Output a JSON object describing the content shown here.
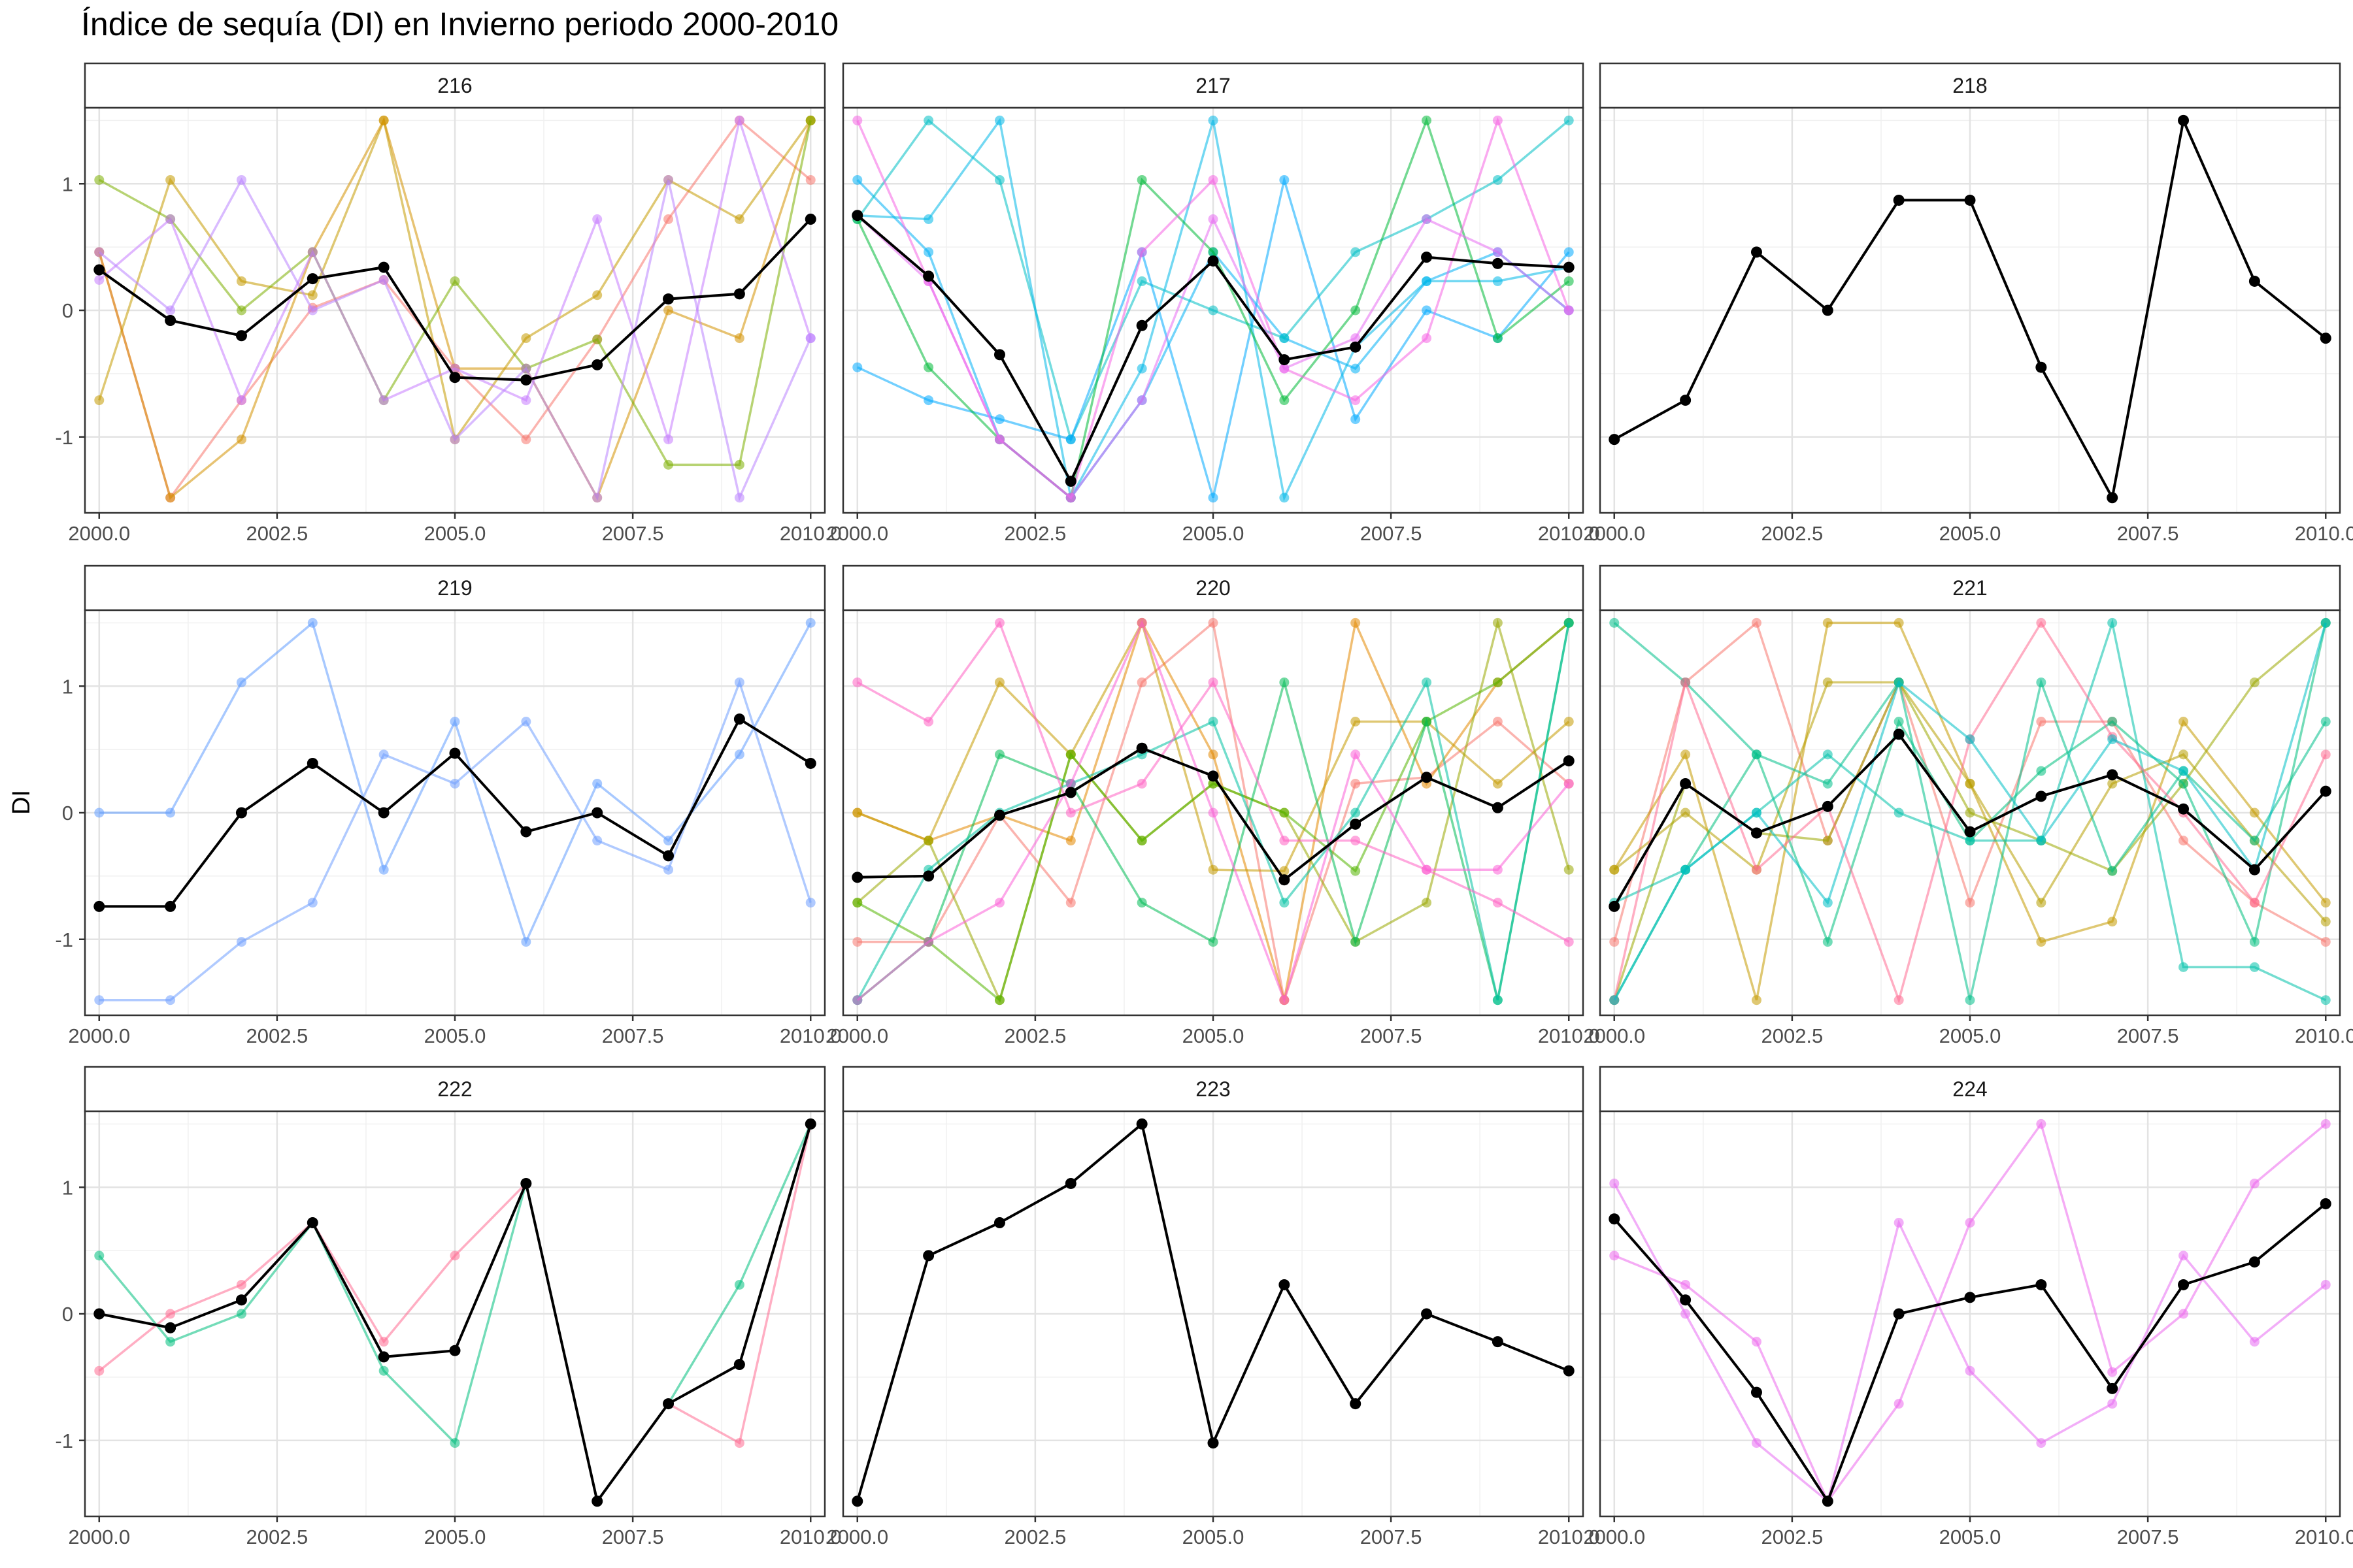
{
  "chart_data": {
    "type": "line",
    "title": "Índice de sequía (DI) en Invierno periodo 2000-2010",
    "xlabel": "",
    "ylabel": "DI",
    "x": [
      2000,
      2001,
      2002,
      2003,
      2004,
      2005,
      2006,
      2007,
      2008,
      2009,
      2010
    ],
    "xticks": [
      2000.0,
      2002.5,
      2005.0,
      2007.5,
      2010.0
    ],
    "xtick_labels": [
      "2000.0",
      "2002.5",
      "2005.0",
      "2007.5",
      "2010.0"
    ],
    "xlim": [
      1999.8,
      2010.2
    ],
    "yticks": [
      -1,
      0,
      1
    ],
    "ytick_labels": [
      "-1",
      "0",
      "1"
    ],
    "ylim": [
      -1.6,
      1.6
    ],
    "grid": true,
    "legend": "none",
    "mean_color": "#000000",
    "panels": [
      {
        "label": "216",
        "mean": [
          0.32,
          -0.08,
          -0.2,
          0.25,
          0.34,
          -0.53,
          -0.55,
          -0.43,
          0.09,
          0.13,
          0.72
        ],
        "series": [
          {
            "color": "#F8766D",
            "values": [
              0.46,
              -1.48,
              -0.71,
              0.02,
              0.24,
              -0.46,
              -1.02,
              -0.23,
              0.72,
              1.5,
              1.03
            ]
          },
          {
            "color": "#C49A00",
            "values": [
              -0.71,
              1.03,
              0.23,
              0.12,
              1.5,
              -1.02,
              -0.22,
              0.12,
              1.03,
              0.72,
              1.5
            ]
          },
          {
            "color": "#D39200",
            "values": [
              0.46,
              -1.48,
              -1.02,
              0.46,
              1.5,
              -0.46,
              -0.46,
              -1.48,
              0.0,
              -0.22,
              1.5
            ]
          },
          {
            "color": "#7CAE00",
            "values": [
              1.03,
              0.72,
              0.0,
              0.46,
              -0.71,
              0.23,
              -0.46,
              -0.23,
              -1.22,
              -1.22,
              1.5
            ]
          },
          {
            "color": "#C77CFF",
            "values": [
              0.24,
              0.72,
              -0.71,
              0.46,
              -0.71,
              -0.46,
              -0.71,
              0.72,
              -1.02,
              1.5,
              -0.22
            ]
          },
          {
            "color": "#B983FF",
            "values": [
              0.46,
              0.0,
              1.03,
              0.0,
              0.24,
              -1.02,
              -0.46,
              -1.48,
              1.03,
              -1.48,
              -0.22
            ]
          }
        ]
      },
      {
        "label": "217",
        "mean": [
          0.75,
          0.27,
          -0.35,
          -1.35,
          -0.12,
          0.39,
          -0.39,
          -0.29,
          0.42,
          0.37,
          0.34
        ],
        "series": [
          {
            "color": "#00B0F6",
            "values": [
              1.03,
              0.46,
              -1.02,
              -1.48,
              -0.71,
              0.46,
              -0.22,
              -0.46,
              0.23,
              0.46,
              0.0
            ]
          },
          {
            "color": "#00BFC4",
            "values": [
              0.72,
              1.5,
              1.03,
              -1.02,
              0.23,
              0.0,
              -0.22,
              0.46,
              0.72,
              1.03,
              1.5
            ]
          },
          {
            "color": "#00A9FF",
            "values": [
              -0.45,
              -0.71,
              -0.86,
              -1.02,
              0.46,
              -1.48,
              1.03,
              -0.86,
              0.0,
              -0.22,
              0.46
            ]
          },
          {
            "color": "#00B8E7",
            "values": [
              0.75,
              0.72,
              1.5,
              -1.48,
              -0.46,
              1.5,
              -1.48,
              -0.29,
              0.23,
              0.23,
              0.34
            ]
          },
          {
            "color": "#00BA38",
            "values": [
              0.72,
              -0.45,
              -1.02,
              -1.48,
              1.03,
              0.46,
              -0.71,
              0.0,
              1.5,
              -0.22,
              0.23
            ]
          },
          {
            "color": "#F564E3",
            "values": [
              1.5,
              0.23,
              -1.02,
              -1.48,
              0.46,
              1.03,
              -0.46,
              -0.71,
              -0.22,
              1.5,
              0.0
            ]
          },
          {
            "color": "#E76BF3",
            "values": [
              0.75,
              0.23,
              -1.02,
              -1.48,
              -0.71,
              0.72,
              -0.46,
              -0.22,
              0.72,
              0.46,
              0.0
            ]
          }
        ]
      },
      {
        "label": "218",
        "mean": [
          -1.02,
          -0.71,
          0.46,
          0.0,
          0.87,
          0.87,
          -0.45,
          -1.48,
          1.5,
          0.23,
          -0.22
        ],
        "series": []
      },
      {
        "label": "219",
        "mean": [
          -0.74,
          -0.74,
          0.0,
          0.39,
          0.0,
          0.47,
          -0.15,
          0.0,
          -0.34,
          0.74,
          0.39
        ],
        "series": [
          {
            "color": "#619CFF",
            "values": [
              0.0,
              0.0,
              1.03,
              1.5,
              -0.45,
              0.72,
              -1.02,
              0.23,
              -0.22,
              0.46,
              1.5
            ]
          },
          {
            "color": "#6F9EFF",
            "values": [
              -1.48,
              -1.48,
              -1.02,
              -0.71,
              0.46,
              0.23,
              0.72,
              -0.22,
              -0.45,
              1.03,
              -0.71
            ]
          }
        ]
      },
      {
        "label": "220",
        "mean": [
          -0.51,
          -0.5,
          -0.02,
          0.16,
          0.51,
          0.29,
          -0.53,
          -0.09,
          0.28,
          0.04,
          0.41
        ],
        "series": [
          {
            "color": "#F8766D",
            "values": [
              -1.02,
              -1.02,
              -0.02,
              -0.71,
              1.03,
              1.5,
              -1.48,
              0.23,
              0.28,
              0.72,
              0.23
            ]
          },
          {
            "color": "#E38900",
            "values": [
              0.0,
              -0.22,
              -0.02,
              -0.22,
              1.5,
              0.46,
              -1.48,
              1.5,
              0.23,
              1.03,
              1.5
            ]
          },
          {
            "color": "#C49A00",
            "values": [
              0.0,
              -0.22,
              1.03,
              0.46,
              1.5,
              -0.45,
              -0.46,
              0.72,
              0.72,
              0.23,
              0.72
            ]
          },
          {
            "color": "#99A800",
            "values": [
              -0.71,
              -0.22,
              -1.48,
              0.46,
              -0.22,
              0.23,
              0.0,
              -1.02,
              -0.71,
              1.5,
              -0.45
            ]
          },
          {
            "color": "#53B400",
            "values": [
              -0.71,
              -1.02,
              -1.48,
              0.46,
              -0.22,
              0.23,
              0.0,
              -0.46,
              0.72,
              1.03,
              1.5
            ]
          },
          {
            "color": "#00BC56",
            "values": [
              -1.48,
              -1.02,
              0.46,
              0.23,
              -0.71,
              -1.02,
              1.03,
              -1.02,
              0.72,
              -1.48,
              1.5
            ]
          },
          {
            "color": "#00C1A3",
            "values": [
              -1.48,
              -0.45,
              0.0,
              0.23,
              0.46,
              0.72,
              -0.71,
              0.0,
              1.03,
              -1.48,
              1.5
            ]
          },
          {
            "color": "#FF61C3",
            "values": [
              1.03,
              0.72,
              1.5,
              0.0,
              0.23,
              1.03,
              -0.22,
              -0.22,
              -0.45,
              -0.71,
              -1.02
            ]
          },
          {
            "color": "#FB61D7",
            "values": [
              -1.48,
              -1.02,
              -0.71,
              0.23,
              1.5,
              0.0,
              -1.48,
              0.46,
              -0.45,
              -0.45,
              0.23
            ]
          }
        ]
      },
      {
        "label": "221",
        "mean": [
          -0.74,
          0.23,
          -0.16,
          0.05,
          0.62,
          -0.15,
          0.13,
          0.3,
          0.03,
          -0.45,
          0.17
        ],
        "series": [
          {
            "color": "#F8766D",
            "values": [
              -1.02,
              1.03,
              1.5,
              -0.22,
              1.03,
              -0.71,
              0.72,
              0.72,
              -0.22,
              -0.71,
              -1.02
            ]
          },
          {
            "color": "#C49A00",
            "values": [
              -0.45,
              0.46,
              -1.48,
              1.5,
              1.5,
              0.23,
              -1.02,
              -0.86,
              0.72,
              0.0,
              -0.71
            ]
          },
          {
            "color": "#B79F00",
            "values": [
              -0.45,
              0.0,
              -0.45,
              1.03,
              1.03,
              0.23,
              -0.71,
              0.23,
              0.46,
              -0.22,
              -0.86
            ]
          },
          {
            "color": "#9AA800",
            "values": [
              -1.48,
              0.23,
              -0.16,
              -0.22,
              1.03,
              0.0,
              -0.22,
              -0.46,
              0.23,
              1.03,
              1.5
            ]
          },
          {
            "color": "#00BF7D",
            "values": [
              -1.48,
              -0.45,
              0.46,
              -1.02,
              0.72,
              -0.22,
              0.33,
              0.72,
              0.23,
              -1.02,
              1.5
            ]
          },
          {
            "color": "#00C08B",
            "values": [
              1.5,
              1.03,
              0.46,
              0.23,
              1.03,
              -1.48,
              1.03,
              -0.46,
              0.33,
              -0.22,
              0.72
            ]
          },
          {
            "color": "#00C1A9",
            "values": [
              -0.71,
              -0.45,
              0.0,
              0.46,
              0.0,
              -0.22,
              -0.22,
              1.5,
              -1.22,
              -1.22,
              -1.48
            ]
          },
          {
            "color": "#FF6C91",
            "values": [
              -1.48,
              1.03,
              -0.45,
              0.05,
              -1.48,
              0.58,
              1.5,
              0.6,
              0.0,
              -0.71,
              0.46
            ]
          },
          {
            "color": "#00BFC4",
            "values": [
              -1.48,
              -0.45,
              0.0,
              -0.71,
              1.03,
              0.58,
              -0.22,
              0.58,
              0.33,
              -0.45,
              1.5
            ]
          }
        ]
      },
      {
        "label": "222",
        "mean": [
          0.0,
          -0.11,
          0.11,
          0.72,
          -0.34,
          -0.29,
          1.03,
          -1.48,
          -0.71,
          -0.4,
          1.5
        ],
        "series": [
          {
            "color": "#00BF7D",
            "values": [
              0.46,
              -0.22,
              0.0,
              0.72,
              -0.45,
              -1.02,
              1.03,
              -1.48,
              -0.71,
              0.23,
              1.5
            ]
          },
          {
            "color": "#FF6C91",
            "values": [
              -0.45,
              0.0,
              0.23,
              0.72,
              -0.22,
              0.46,
              1.03,
              -1.48,
              -0.71,
              -1.02,
              1.5
            ]
          }
        ]
      },
      {
        "label": "223",
        "mean": [
          -1.48,
          0.46,
          0.72,
          1.03,
          1.5,
          -1.02,
          0.23,
          -0.71,
          0.0,
          -0.22,
          -0.45
        ],
        "series": []
      },
      {
        "label": "224",
        "mean": [
          0.75,
          0.11,
          -0.62,
          -1.48,
          0.0,
          0.13,
          0.23,
          -0.59,
          0.23,
          0.41,
          0.87
        ],
        "series": [
          {
            "color": "#E76BF3",
            "values": [
              1.03,
              0.0,
              -1.02,
              -1.48,
              0.72,
              -0.45,
              -1.02,
              -0.71,
              0.46,
              -0.22,
              0.23
            ]
          },
          {
            "color": "#ED68ED",
            "values": [
              0.46,
              0.23,
              -0.22,
              -1.48,
              -0.71,
              0.72,
              1.5,
              -0.46,
              0.0,
              1.03,
              1.5
            ]
          }
        ]
      }
    ]
  }
}
